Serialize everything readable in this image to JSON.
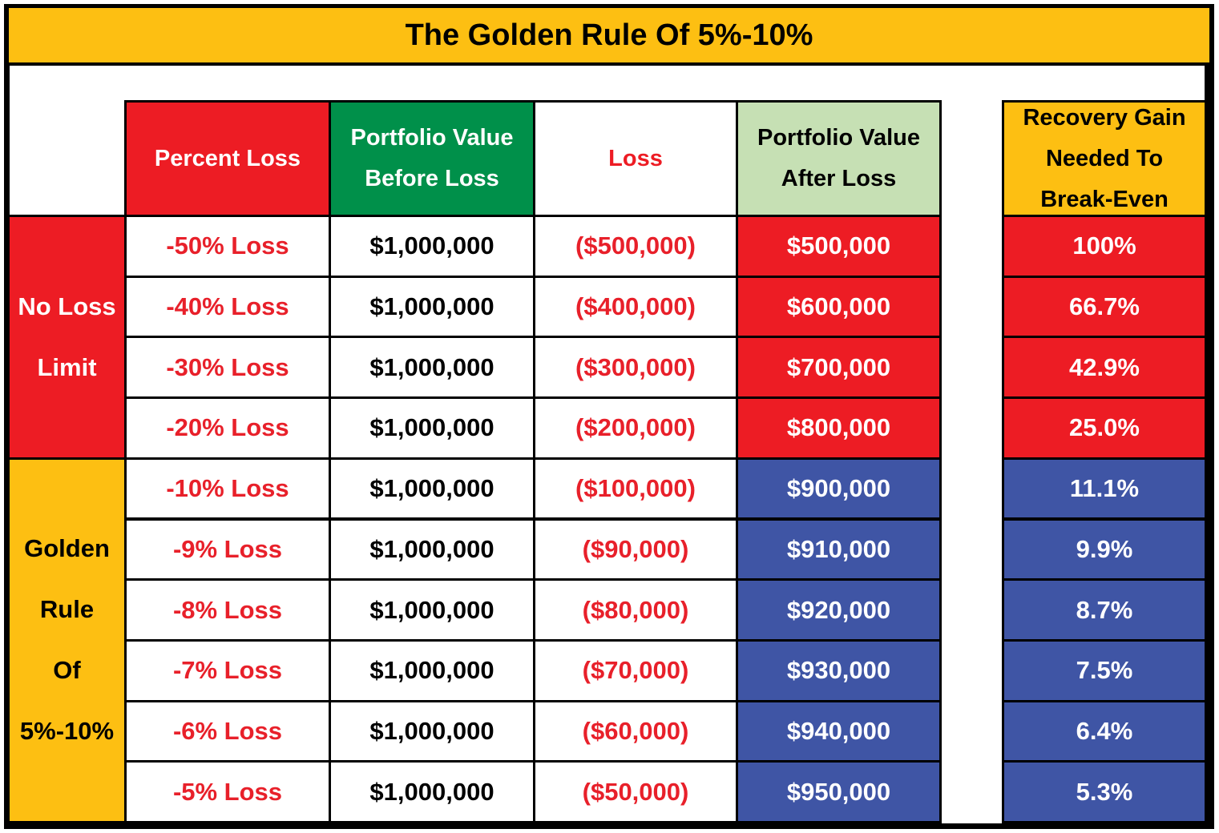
{
  "title": "The Golden Rule Of 5%-10%",
  "headers": [
    [
      "Percent Loss"
    ],
    [
      "Portfolio Value",
      "Before Loss"
    ],
    [
      "Loss"
    ],
    [
      "Portfolio Value",
      "After Loss"
    ],
    [
      "Recovery Gain",
      "Needed To",
      "Break-Even"
    ]
  ],
  "groups": [
    {
      "label": [
        "No Loss",
        "Limit"
      ],
      "rows": [
        [
          "-50% Loss",
          "$1,000,000",
          "($500,000)",
          "$500,000",
          "100%"
        ],
        [
          "-40% Loss",
          "$1,000,000",
          "($400,000)",
          "$600,000",
          "66.7%"
        ],
        [
          "-30% Loss",
          "$1,000,000",
          "($300,000)",
          "$700,000",
          "42.9%"
        ],
        [
          "-20% Loss",
          "$1,000,000",
          "($200,000)",
          "$800,000",
          "25.0%"
        ]
      ]
    },
    {
      "label": [
        "Golden",
        "Rule",
        "Of",
        "5%-10%"
      ],
      "rows": [
        [
          "-10% Loss",
          "$1,000,000",
          "($100,000)",
          "$900,000",
          "11.1%"
        ],
        [
          "-9% Loss",
          "$1,000,000",
          "($90,000)",
          "$910,000",
          "9.9%"
        ],
        [
          "-8% Loss",
          "$1,000,000",
          "($80,000)",
          "$920,000",
          "8.7%"
        ],
        [
          "-7% Loss",
          "$1,000,000",
          "($70,000)",
          "$930,000",
          "7.5%"
        ],
        [
          "-6% Loss",
          "$1,000,000",
          "($60,000)",
          "$940,000",
          "6.4%"
        ],
        [
          "-5% Loss",
          "$1,000,000",
          "($50,000)",
          "$950,000",
          "5.3%"
        ]
      ]
    }
  ]
}
